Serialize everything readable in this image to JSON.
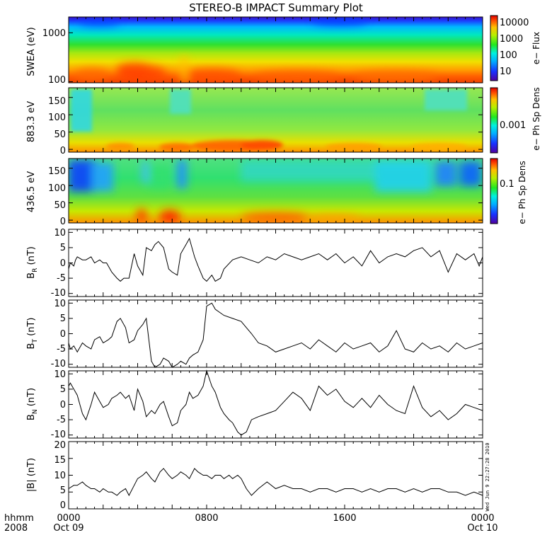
{
  "title": "STEREO-B IMPACT Summary Plot",
  "timestamp": "Wed Jun  9 22:27:28 2010",
  "x_axis": {
    "row1": [
      "0000",
      "0800",
      "1600",
      "0000"
    ],
    "row2": [
      "Oct 09",
      "",
      "",
      "Oct 10"
    ],
    "left_row1": "hhmm",
    "left_row2": "2008"
  },
  "colors": {
    "frame": "#000000",
    "line": "#000000",
    "background": "#ffffff"
  },
  "chart_data": [
    {
      "type": "heatmap",
      "ylabel": "SWEA (eV)",
      "ylim": [
        95,
        2100
      ],
      "yscale": "log",
      "yticks": [
        "100",
        "1000"
      ],
      "colorbar": {
        "label": "e− Flux",
        "scale": "log",
        "ticks": [
          "10000",
          "1000",
          "100",
          "10"
        ],
        "range": [
          3,
          30000
        ]
      },
      "description_values": {
        "low_energy_flux": 10000,
        "high_energy_flux": 10
      }
    },
    {
      "type": "heatmap",
      "ylabel": "883.3 eV",
      "ylim": [
        -8,
        178
      ],
      "yticks": [
        "0",
        "50",
        "100",
        "150"
      ],
      "colorbar": {
        "label": "e− Ph Sp Dens",
        "scale": "log",
        "ticks": [
          "0.001"
        ]
      }
    },
    {
      "type": "heatmap",
      "ylabel": "436.5 eV",
      "ylim": [
        -8,
        178
      ],
      "yticks": [
        "0",
        "50",
        "100",
        "150"
      ],
      "colorbar": {
        "label": "e− Ph Sp Dens",
        "scale": "log",
        "ticks": [
          "0.1"
        ]
      }
    },
    {
      "type": "line",
      "ylabel": "B_R (nT)",
      "ylabel_main": "B",
      "ylabel_sub": "R",
      "ylabel_unit": " (nT)",
      "ylim": [
        -11,
        11
      ],
      "yticks": [
        "10",
        "5",
        "0",
        "-5",
        "-10"
      ],
      "x": [
        0.0,
        0.1,
        0.3,
        0.4,
        0.5,
        0.8,
        1.0,
        1.3,
        1.5,
        1.8,
        2.0,
        2.2,
        2.5,
        2.8,
        3.0,
        3.2,
        3.5,
        3.8,
        4.0,
        4.3,
        4.5,
        4.8,
        5.0,
        5.2,
        5.5,
        5.8,
        6.0,
        6.3,
        6.5,
        6.8,
        7.0,
        7.3,
        7.5,
        7.8,
        8.0,
        8.3,
        8.5,
        8.8,
        9.0,
        9.5,
        10.0,
        10.5,
        11.0,
        11.5,
        12.0,
        12.5,
        13.0,
        13.5,
        14.0,
        14.5,
        15.0,
        15.5,
        16.0,
        16.5,
        17.0,
        17.5,
        18.0,
        18.5,
        19.0,
        19.5,
        20.0,
        20.5,
        21.0,
        21.5,
        22.0,
        22.5,
        23.0,
        23.5,
        23.8,
        24.0
      ],
      "y": [
        -2,
        0,
        -1,
        1,
        2,
        1,
        1,
        2,
        0,
        1,
        0,
        0,
        -3,
        -5,
        -6,
        -5,
        -5,
        3,
        -1,
        -4,
        5,
        4,
        6,
        7,
        5,
        -2,
        -3,
        -4,
        3,
        6,
        8,
        2,
        -1,
        -5,
        -6,
        -4,
        -6,
        -5,
        -2,
        1,
        2,
        1,
        0,
        2,
        1,
        3,
        2,
        1,
        2,
        3,
        1,
        3,
        0,
        2,
        -1,
        4,
        0,
        2,
        3,
        2,
        4,
        5,
        2,
        4,
        -3,
        3,
        1,
        3,
        -1,
        2
      ]
    },
    {
      "type": "line",
      "ylabel": "B_T (nT)",
      "ylabel_main": "B",
      "ylabel_sub": "T",
      "ylabel_unit": " (nT)",
      "ylim": [
        -11,
        11
      ],
      "yticks": [
        "10",
        "5",
        "0",
        "-5",
        "-10"
      ],
      "x": [
        0.0,
        0.1,
        0.3,
        0.5,
        0.8,
        1.0,
        1.3,
        1.5,
        1.8,
        2.0,
        2.3,
        2.5,
        2.8,
        3.0,
        3.3,
        3.5,
        3.8,
        4.0,
        4.3,
        4.5,
        4.8,
        5.0,
        5.3,
        5.5,
        5.8,
        6.0,
        6.3,
        6.5,
        6.8,
        7.0,
        7.2,
        7.5,
        7.8,
        8.0,
        8.3,
        8.5,
        9.0,
        9.5,
        10.0,
        10.3,
        10.6,
        11.0,
        11.5,
        12.0,
        12.5,
        13.0,
        13.5,
        14.0,
        14.5,
        15.0,
        15.5,
        16.0,
        16.5,
        17.0,
        17.5,
        18.0,
        18.5,
        19.0,
        19.5,
        20.0,
        20.5,
        21.0,
        21.5,
        22.0,
        22.5,
        23.0,
        23.5,
        24.0
      ],
      "y": [
        -3,
        -5,
        -4,
        -6,
        -3,
        -4,
        -5,
        -2,
        -1,
        -3,
        -2,
        -1,
        4,
        5,
        2,
        -3,
        -2,
        1,
        3,
        5,
        -9,
        -11,
        -10,
        -8,
        -9,
        -11,
        -10,
        -9,
        -10,
        -8,
        -7,
        -6,
        -2,
        9,
        10,
        8,
        6,
        5,
        4,
        2,
        0,
        -3,
        -4,
        -6,
        -5,
        -4,
        -3,
        -5,
        -2,
        -4,
        -6,
        -3,
        -5,
        -4,
        -3,
        -6,
        -4,
        1,
        -5,
        -6,
        -3,
        -5,
        -4,
        -6,
        -3,
        -5,
        -4,
        -3
      ]
    },
    {
      "type": "line",
      "ylabel": "B_N (nT)",
      "ylabel_main": "B",
      "ylabel_sub": "N",
      "ylabel_unit": " (nT)",
      "ylim": [
        -11,
        11
      ],
      "yticks": [
        "10",
        "5",
        "0",
        "-5",
        "-10"
      ],
      "x": [
        0.0,
        0.1,
        0.3,
        0.5,
        0.8,
        1.0,
        1.3,
        1.5,
        1.8,
        2.0,
        2.3,
        2.5,
        2.8,
        3.0,
        3.3,
        3.5,
        3.8,
        4.0,
        4.3,
        4.5,
        4.8,
        5.0,
        5.3,
        5.5,
        5.8,
        6.0,
        6.3,
        6.5,
        6.8,
        7.0,
        7.2,
        7.5,
        7.8,
        8.0,
        8.3,
        8.5,
        8.8,
        9.0,
        9.3,
        9.5,
        9.8,
        10.0,
        10.3,
        10.6,
        11.0,
        11.5,
        12.0,
        12.5,
        13.0,
        13.5,
        14.0,
        14.5,
        15.0,
        15.5,
        16.0,
        16.5,
        17.0,
        17.5,
        18.0,
        18.5,
        19.0,
        19.5,
        20.0,
        20.5,
        21.0,
        21.5,
        22.0,
        22.5,
        23.0,
        23.5,
        24.0
      ],
      "y": [
        6,
        7,
        5,
        3,
        -3,
        -5,
        0,
        4,
        1,
        -1,
        0,
        2,
        3,
        4,
        2,
        3,
        -2,
        5,
        1,
        -4,
        -2,
        -3,
        0,
        1,
        -4,
        -7,
        -6,
        -2,
        0,
        4,
        2,
        3,
        6,
        11,
        6,
        4,
        -1,
        -3,
        -5,
        -6,
        -9,
        -10,
        -9,
        -5,
        -4,
        -3,
        -2,
        1,
        4,
        2,
        -2,
        6,
        3,
        5,
        1,
        -1,
        2,
        -1,
        3,
        0,
        -2,
        -3,
        6,
        -1,
        -4,
        -2,
        -5,
        -3,
        0,
        -1,
        -2
      ]
    },
    {
      "type": "line",
      "ylabel": "|B| (nT)",
      "ylabel_main": "|B|",
      "ylabel_sub": "",
      "ylabel_unit": " (nT)",
      "ylim": [
        0,
        20
      ],
      "yticks": [
        "20",
        "15",
        "10",
        "5",
        "0"
      ],
      "x": [
        0.0,
        0.3,
        0.5,
        0.8,
        1.0,
        1.3,
        1.5,
        1.8,
        2.0,
        2.3,
        2.5,
        2.8,
        3.0,
        3.3,
        3.5,
        3.8,
        4.0,
        4.3,
        4.5,
        4.8,
        5.0,
        5.3,
        5.5,
        5.8,
        6.0,
        6.3,
        6.5,
        6.8,
        7.0,
        7.3,
        7.5,
        7.8,
        8.0,
        8.3,
        8.5,
        8.8,
        9.0,
        9.3,
        9.5,
        9.8,
        10.0,
        10.3,
        10.6,
        11.0,
        11.5,
        12.0,
        12.5,
        13.0,
        13.5,
        14.0,
        14.5,
        15.0,
        15.5,
        16.0,
        16.5,
        17.0,
        17.5,
        18.0,
        18.5,
        19.0,
        19.5,
        20.0,
        20.5,
        21.0,
        21.5,
        22.0,
        22.5,
        23.0,
        23.5,
        24.0
      ],
      "y": [
        6,
        7,
        7,
        8,
        7,
        6,
        6,
        5,
        6,
        5,
        5,
        4,
        5,
        6,
        4,
        7,
        9,
        10,
        11,
        9,
        8,
        11,
        12,
        10,
        9,
        10,
        11,
        10,
        9,
        12,
        11,
        10,
        10,
        9,
        10,
        10,
        9,
        10,
        9,
        10,
        9,
        6,
        4,
        6,
        8,
        6,
        7,
        6,
        6,
        5,
        6,
        6,
        5,
        6,
        6,
        5,
        6,
        5,
        6,
        6,
        5,
        6,
        5,
        6,
        6,
        5,
        5,
        4,
        5,
        4
      ]
    }
  ]
}
